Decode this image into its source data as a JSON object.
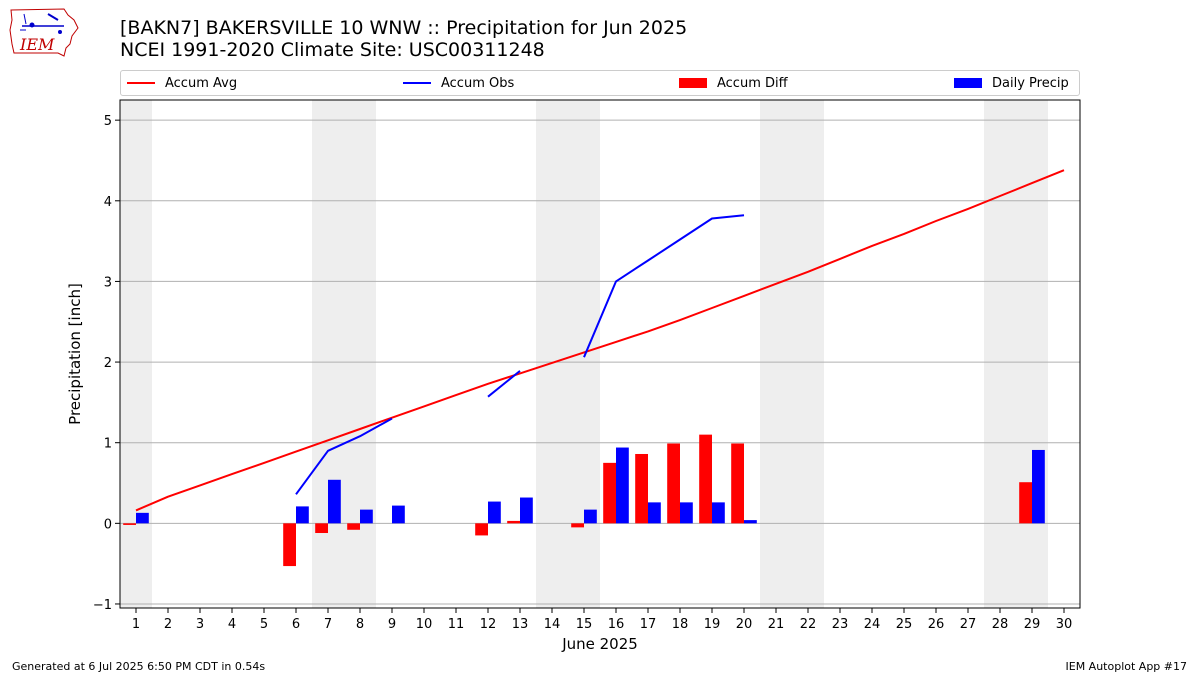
{
  "header": {
    "title_line1": "[BAKN7] BAKERSVILLE 10 WNW :: Precipitation for Jun 2025",
    "title_line2": "NCEI 1991-2020 Climate Site: USC00311248",
    "logo_text": "IEM"
  },
  "legend": {
    "accum_avg": "Accum Avg",
    "accum_obs": "Accum Obs",
    "accum_diff": "Accum Diff",
    "daily_precip": "Daily Precip"
  },
  "colors": {
    "avg": "#ff0000",
    "obs": "#0000ff",
    "diff": "#ff0000",
    "daily": "#0000ff",
    "weekend_band": "#eeeeee",
    "grid": "#b0b0b0"
  },
  "footer": {
    "left": "Generated at 6 Jul 2025 6:50 PM CDT in 0.54s",
    "right": "IEM Autoplot App #17"
  },
  "chart_data": {
    "type": "bar",
    "xlabel": "June 2025",
    "ylabel": "Precipitation [inch]",
    "xlim": [
      0.5,
      30.5
    ],
    "ylim": [
      -1.05,
      5.25
    ],
    "x": [
      1,
      2,
      3,
      4,
      5,
      6,
      7,
      8,
      9,
      10,
      11,
      12,
      13,
      14,
      15,
      16,
      17,
      18,
      19,
      20,
      21,
      22,
      23,
      24,
      25,
      26,
      27,
      28,
      29,
      30
    ],
    "x_tick_labels": [
      "1",
      "2",
      "3",
      "4",
      "5",
      "6",
      "7",
      "8",
      "9",
      "10",
      "11",
      "12",
      "13",
      "14",
      "15",
      "16",
      "17",
      "18",
      "19",
      "20",
      "21",
      "22",
      "23",
      "24",
      "25",
      "26",
      "27",
      "28",
      "29",
      "30"
    ],
    "y_ticks": [
      -1,
      0,
      1,
      2,
      3,
      4,
      5
    ],
    "y_tick_labels": [
      "−1",
      "0",
      "1",
      "2",
      "3",
      "4",
      "5"
    ],
    "grid": "horizontal",
    "weekend_shading": [
      [
        0.5,
        1.5
      ],
      [
        6.5,
        8.5
      ],
      [
        13.5,
        15.5
      ],
      [
        20.5,
        22.5
      ],
      [
        27.5,
        29.5
      ]
    ],
    "series": [
      {
        "name": "Accum Avg",
        "kind": "line",
        "values": [
          0.16,
          0.33,
          0.47,
          0.61,
          0.75,
          0.89,
          1.03,
          1.17,
          1.31,
          1.45,
          1.59,
          1.73,
          1.86,
          1.99,
          2.12,
          2.25,
          2.38,
          2.52,
          2.67,
          2.82,
          2.97,
          3.12,
          3.28,
          3.44,
          3.59,
          3.75,
          3.9,
          4.06,
          4.22,
          4.38
        ]
      },
      {
        "name": "Accum Obs",
        "kind": "line",
        "values": [
          null,
          null,
          null,
          null,
          null,
          0.36,
          0.9,
          1.08,
          1.3,
          null,
          null,
          1.57,
          1.89,
          null,
          2.06,
          3.0,
          3.26,
          3.52,
          3.78,
          3.82,
          null,
          null,
          null,
          null,
          null,
          null,
          null,
          null,
          null,
          null
        ]
      },
      {
        "name": "Accum Diff",
        "kind": "bar",
        "values": [
          -0.02,
          0,
          0,
          0,
          0,
          -0.53,
          -0.12,
          -0.08,
          0,
          0,
          0,
          -0.15,
          0.03,
          0,
          -0.05,
          0.75,
          0.86,
          0.99,
          1.1,
          0.99,
          0,
          0,
          0,
          0,
          0,
          0,
          0,
          0,
          0.51,
          0
        ]
      },
      {
        "name": "Daily Precip",
        "kind": "bar",
        "values": [
          0.13,
          0,
          0,
          0,
          0,
          0.21,
          0.54,
          0.17,
          0.22,
          0,
          0,
          0.27,
          0.32,
          0,
          0.17,
          0.94,
          0.26,
          0.26,
          0.26,
          0.04,
          0,
          0,
          0,
          0,
          0,
          0,
          0,
          0,
          0.91,
          0
        ]
      }
    ]
  }
}
